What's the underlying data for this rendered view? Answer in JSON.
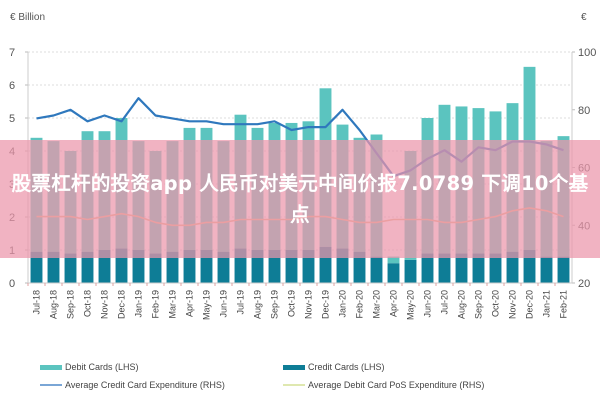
{
  "chart_data": {
    "type": "bar",
    "title": "",
    "left_axis_unit": "€ Billion",
    "right_axis_unit": "€",
    "ylabel_left": "€ Billion",
    "ylabel_right": "€",
    "ylim_left": [
      0,
      7
    ],
    "ylim_right": [
      20,
      100
    ],
    "yticks_left": [
      0,
      1,
      2,
      3,
      4,
      5,
      6,
      7
    ],
    "yticks_right": [
      20,
      40,
      60,
      80,
      100
    ],
    "grid": true,
    "legend_position": "bottom",
    "categories": [
      "Jul-18",
      "Aug-18",
      "Sep-18",
      "Oct-18",
      "Nov-18",
      "Dec-18",
      "Jan-19",
      "Feb-19",
      "Mar-19",
      "Apr-19",
      "May-19",
      "Jun-19",
      "Jul-19",
      "Aug-19",
      "Sep-19",
      "Oct-19",
      "Nov-19",
      "Dec-19",
      "Jan-20",
      "Feb-20",
      "Mar-20",
      "Apr-20",
      "May-20",
      "Jun-20",
      "Jul-20",
      "Aug-20",
      "Sep-20",
      "Oct-20",
      "Nov-20",
      "Dec-20",
      "Jan-21",
      "Feb-21"
    ],
    "series": [
      {
        "name": "Debit Cards (LHS)",
        "axis": "left",
        "kind": "bar",
        "color": "#5bc4bf",
        "values": [
          4.4,
          4.3,
          4.0,
          4.6,
          4.6,
          5.0,
          4.3,
          4.0,
          4.3,
          4.7,
          4.7,
          4.3,
          5.1,
          4.7,
          4.85,
          4.85,
          4.9,
          5.9,
          4.8,
          4.4,
          4.5,
          0.8,
          4.0,
          5.0,
          5.4,
          5.35,
          5.3,
          5.2,
          5.45,
          6.55,
          4.3,
          4.45
        ]
      },
      {
        "name": "Credit Cards (LHS)",
        "axis": "left",
        "kind": "bar",
        "color": "#0e7d96",
        "values": [
          0.95,
          0.95,
          0.9,
          0.95,
          1.0,
          1.05,
          1.0,
          0.9,
          0.95,
          1.0,
          1.0,
          0.95,
          1.05,
          1.0,
          1.0,
          1.0,
          1.0,
          1.1,
          1.05,
          0.95,
          0.8,
          0.6,
          0.7,
          0.9,
          0.9,
          0.9,
          0.9,
          0.9,
          0.95,
          1.0,
          0.8,
          0.8
        ]
      },
      {
        "name": "Average Credit Card Expenditure (RHS)",
        "axis": "right",
        "kind": "line",
        "color": "#3c7fc0",
        "values": [
          77,
          78,
          80,
          76,
          78,
          76,
          84,
          78,
          77,
          76,
          76,
          75,
          75,
          75,
          76,
          73,
          74,
          74,
          80,
          73,
          65,
          57,
          59,
          63,
          66,
          62,
          67,
          66,
          69,
          69,
          68,
          66
        ]
      },
      {
        "name": "Average Debit Card PoS Expenditure (RHS)",
        "axis": "right",
        "kind": "line",
        "color": "#d9e6a0",
        "values": [
          43,
          43,
          43,
          42,
          43,
          44,
          43,
          41,
          40,
          40,
          41,
          41,
          42,
          42,
          42,
          42,
          43,
          43,
          42,
          41,
          41,
          42,
          42,
          42,
          41,
          41,
          42,
          43,
          45,
          46,
          45,
          43
        ]
      }
    ]
  },
  "legend": {
    "items": [
      {
        "label": "Debit Cards (LHS)",
        "color": "#5bc4bf",
        "type": "bar"
      },
      {
        "label": "Credit Cards (LHS)",
        "color": "#0e7d96",
        "type": "bar"
      },
      {
        "label": "Average Credit Card Expenditure (RHS)",
        "color": "#7aa6d6",
        "type": "line"
      },
      {
        "label": "Average Debit Card PoS Expenditure (RHS)",
        "color": "#dfe8b0",
        "type": "line"
      }
    ]
  },
  "banner": {
    "text": "股票杠杆的投资app 人民币对美元中间价报7.0789 下调10个基点",
    "background": "#ec96aa"
  }
}
